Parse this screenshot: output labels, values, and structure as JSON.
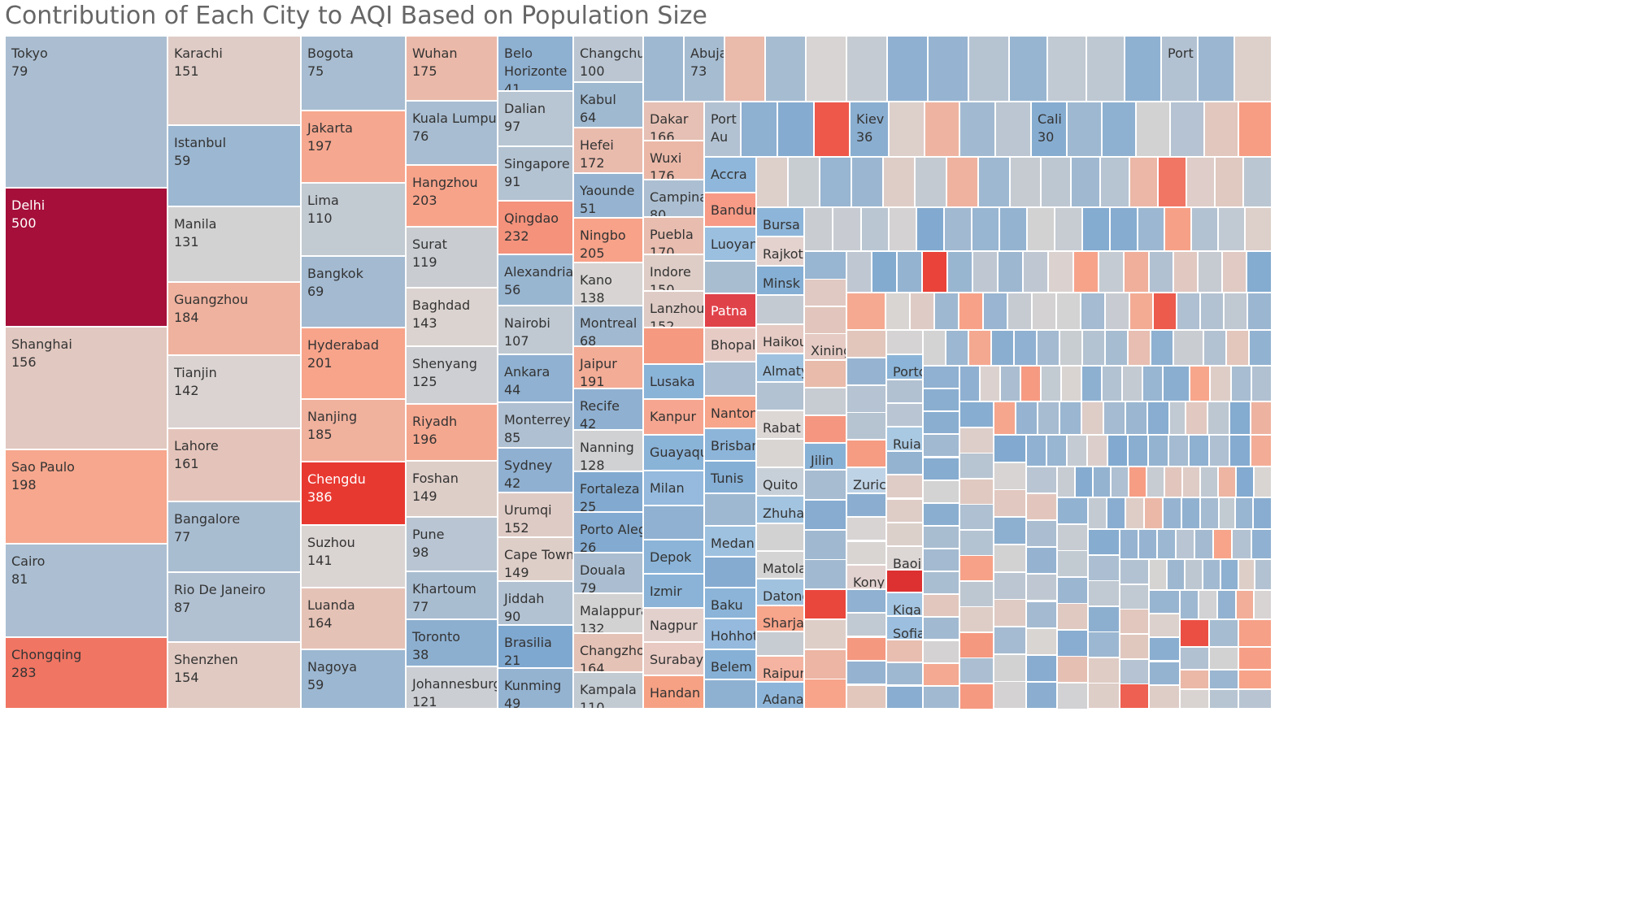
{
  "title": "Contribution of Each City to AQI Based on Population Size",
  "chart_data": {
    "type": "treemap",
    "title": "Contribution of Each City to AQI Based on Population Size",
    "size_measure": "Population",
    "color_measure": "AQI",
    "color_scale": {
      "low": "#7ea8d0",
      "mid": "#d9d5d3",
      "high": "#e8372f",
      "max": "#a50f3a",
      "domain": [
        20,
        500
      ]
    },
    "labeled_cities": [
      {
        "name": "Tokyo",
        "aqi": 79
      },
      {
        "name": "Delhi",
        "aqi": 500
      },
      {
        "name": "Shanghai",
        "aqi": 156
      },
      {
        "name": "Sao Paulo",
        "aqi": 198
      },
      {
        "name": "Cairo",
        "aqi": 81
      },
      {
        "name": "Chongqing",
        "aqi": 283
      },
      {
        "name": "Karachi",
        "aqi": 151
      },
      {
        "name": "Istanbul",
        "aqi": 59
      },
      {
        "name": "Manila",
        "aqi": 131
      },
      {
        "name": "Guangzhou",
        "aqi": 184
      },
      {
        "name": "Tianjin",
        "aqi": 142
      },
      {
        "name": "Lahore",
        "aqi": 161
      },
      {
        "name": "Bangalore",
        "aqi": 77
      },
      {
        "name": "Rio De Janeiro",
        "aqi": 87
      },
      {
        "name": "Shenzhen",
        "aqi": 154
      },
      {
        "name": "Bogota",
        "aqi": 75
      },
      {
        "name": "Jakarta",
        "aqi": 197
      },
      {
        "name": "Lima",
        "aqi": 110
      },
      {
        "name": "Bangkok",
        "aqi": 69
      },
      {
        "name": "Hyderabad",
        "aqi": 201
      },
      {
        "name": "Nanjing",
        "aqi": 185
      },
      {
        "name": "Chengdu",
        "aqi": 386
      },
      {
        "name": "Suzhou",
        "aqi": 141
      },
      {
        "name": "Luanda",
        "aqi": 164
      },
      {
        "name": "Nagoya",
        "aqi": 59
      },
      {
        "name": "Wuhan",
        "aqi": 175
      },
      {
        "name": "Kuala Lumpur",
        "aqi": 76
      },
      {
        "name": "Hangzhou",
        "aqi": 203
      },
      {
        "name": "Surat",
        "aqi": 119
      },
      {
        "name": "Baghdad",
        "aqi": 143
      },
      {
        "name": "Shenyang",
        "aqi": 125
      },
      {
        "name": "Riyadh",
        "aqi": 196
      },
      {
        "name": "Foshan",
        "aqi": 149
      },
      {
        "name": "Pune",
        "aqi": 98
      },
      {
        "name": "Khartoum",
        "aqi": 77
      },
      {
        "name": "Toronto",
        "aqi": 38
      },
      {
        "name": "Johannesburg",
        "aqi": 121
      },
      {
        "name": "Belo Horizonte",
        "aqi": 41
      },
      {
        "name": "Dalian",
        "aqi": 97
      },
      {
        "name": "Singapore",
        "aqi": 91
      },
      {
        "name": "Qingdao",
        "aqi": 232
      },
      {
        "name": "Alexandria",
        "aqi": 56
      },
      {
        "name": "Nairobi",
        "aqi": 107
      },
      {
        "name": "Ankara",
        "aqi": 44
      },
      {
        "name": "Monterrey",
        "aqi": 85
      },
      {
        "name": "Sydney",
        "aqi": 42
      },
      {
        "name": "Urumqi",
        "aqi": 152
      },
      {
        "name": "Cape Town",
        "aqi": 149
      },
      {
        "name": "Jiddah",
        "aqi": 90
      },
      {
        "name": "Brasilia",
        "aqi": 21
      },
      {
        "name": "Kunming",
        "aqi": 49
      },
      {
        "name": "Changchun",
        "aqi": 100
      },
      {
        "name": "Kabul",
        "aqi": 64
      },
      {
        "name": "Hefei",
        "aqi": 172
      },
      {
        "name": "Yaounde",
        "aqi": 51
      },
      {
        "name": "Ningbo",
        "aqi": 205
      },
      {
        "name": "Kano",
        "aqi": 138
      },
      {
        "name": "Montreal",
        "aqi": 68
      },
      {
        "name": "Jaipur",
        "aqi": 191
      },
      {
        "name": "Recife",
        "aqi": 42
      },
      {
        "name": "Nanning",
        "aqi": 128
      },
      {
        "name": "Fortaleza",
        "aqi": 25
      },
      {
        "name": "Porto Alegre",
        "aqi": 26
      },
      {
        "name": "Douala",
        "aqi": 79
      },
      {
        "name": "Malappuram",
        "aqi": 132
      },
      {
        "name": "Changzhou",
        "aqi": 164
      },
      {
        "name": "Kampala",
        "aqi": 110
      },
      {
        "name": "Abuja",
        "aqi": 73
      },
      {
        "name": "Dakar",
        "aqi": 166
      },
      {
        "name": "Wuxi",
        "aqi": 176
      },
      {
        "name": "Campinas",
        "aqi": 80
      },
      {
        "name": "Puebla",
        "aqi": 170
      },
      {
        "name": "Indore",
        "aqi": 150
      },
      {
        "name": "Lanzhou",
        "aqi": 152
      },
      {
        "name": "Port Au",
        "aqi": null
      },
      {
        "name": "Kiev",
        "aqi": 36
      },
      {
        "name": "Cali",
        "aqi": 30
      },
      {
        "name": "Port",
        "aqi": null
      }
    ],
    "unlabeled_cities": [
      "Accra",
      "Bandung",
      "Luoyang",
      "Patna",
      "Bhopal",
      "Nantong",
      "Brisbane",
      "Tunis",
      "Medan",
      "Baku",
      "Hohhot",
      "Belem",
      "Kanpur",
      "Guayaquil",
      "Milan",
      "Depok",
      "Izmir",
      "Nagpur",
      "Surabaya",
      "Handan",
      "Lusaka",
      "Bursa",
      "Rajkot",
      "Minsk",
      "Haikou",
      "Almaty",
      "Rabat",
      "Quito",
      "Zhuhai",
      "Matola",
      "Datong",
      "Sharjah",
      "Raipur",
      "Adana",
      "Xining",
      "Jilin",
      "Zurich",
      "Konya",
      "Porto",
      "Ruian",
      "Baoji",
      "Kigali",
      "Sofia"
    ],
    "visible_labels": [
      "Tokyo",
      "Karachi",
      "Bogota",
      "Wuhan",
      "Belo Horizonte",
      "Changchun",
      "Abuja",
      "Port",
      "Dakar",
      "Port Au",
      "Kiev",
      "Cali",
      "Accra",
      "Bandung",
      "Luoyang",
      "Patna",
      "Bhopal",
      "Nantong",
      "Brisbane",
      "Tunis",
      "Medan",
      "Baku",
      "Hohhot",
      "Belem",
      "Kanpur",
      "Guayaquil",
      "Milan",
      "Depok",
      "Izmir",
      "Nagpur",
      "Surabaya",
      "Handan",
      "Lusaka",
      "Bursa",
      "Rajkot",
      "Minsk",
      "Haikou",
      "Almaty",
      "Rabat",
      "Quito",
      "Zhuhai",
      "Matola",
      "Datong",
      "Sharjah",
      "Raipur",
      "Adana",
      "Xining",
      "Jilin",
      "Zurich",
      "Konya",
      "Porto",
      "Ruian",
      "Baoji",
      "Kigali",
      "Sofia"
    ]
  }
}
